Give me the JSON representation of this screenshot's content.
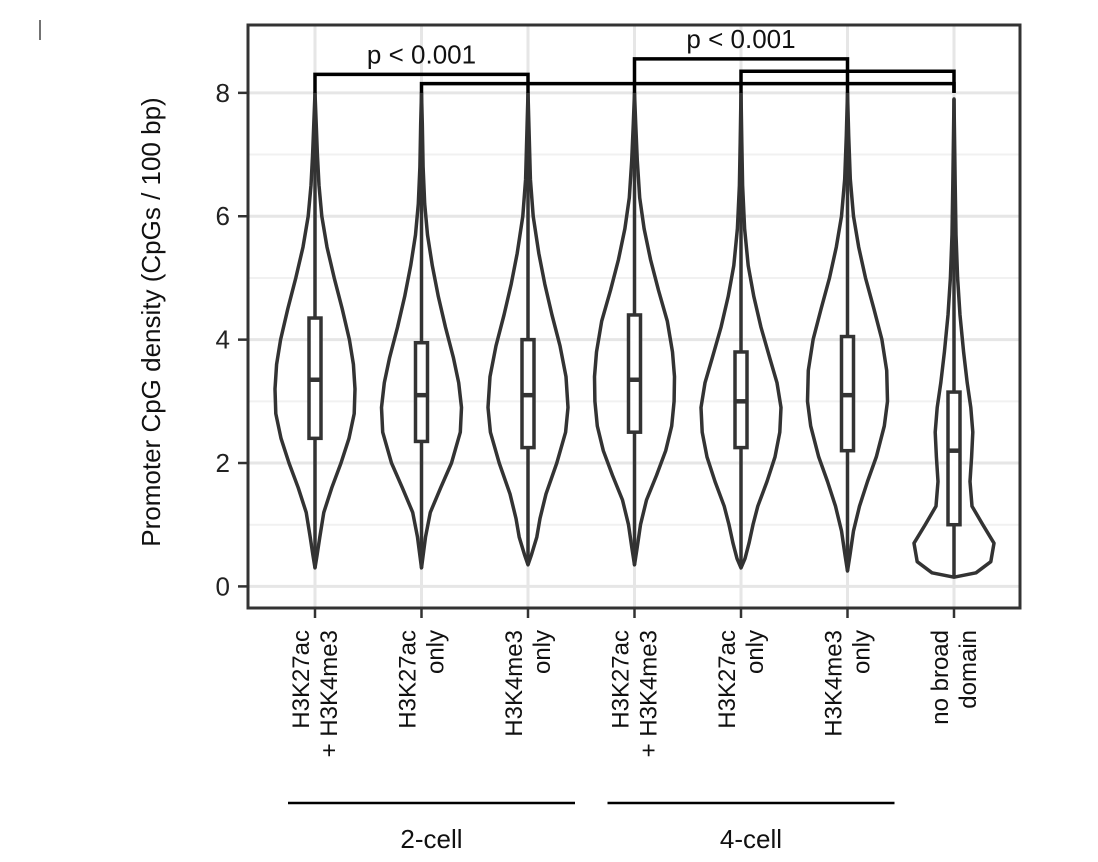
{
  "chart_data": {
    "type": "violin",
    "ylabel": "Promoter CpG density (CpGs / 100 bp)",
    "ylim": [
      -0.35,
      9.1
    ],
    "yticks": [
      "0",
      "2",
      "4",
      "6",
      "8"
    ],
    "grid": true,
    "categories": [
      {
        "lines": [
          "H3K27ac",
          "+ H3K4me3"
        ],
        "group": "2-cell"
      },
      {
        "lines": [
          "H3K27ac",
          "only"
        ],
        "group": "2-cell"
      },
      {
        "lines": [
          "H3K4me3",
          "only"
        ],
        "group": "2-cell"
      },
      {
        "lines": [
          "H3K27ac",
          "+ H3K4me3"
        ],
        "group": "4-cell"
      },
      {
        "lines": [
          "H3K27ac",
          "only"
        ],
        "group": "4-cell"
      },
      {
        "lines": [
          "H3K4me3",
          "only"
        ],
        "group": "4-cell"
      },
      {
        "lines": [
          "no broad",
          "domain"
        ],
        "group": ""
      }
    ],
    "groups": [
      "2-cell",
      "4-cell"
    ],
    "series": [
      {
        "median": 3.35,
        "q1": 2.4,
        "q3": 4.35,
        "min": 0.3,
        "max": 8.0,
        "density": [
          [
            0.3,
            0.0
          ],
          [
            0.5,
            0.05
          ],
          [
            0.8,
            0.12
          ],
          [
            1.2,
            0.22
          ],
          [
            1.6,
            0.42
          ],
          [
            2.0,
            0.65
          ],
          [
            2.4,
            0.85
          ],
          [
            2.8,
            0.98
          ],
          [
            3.2,
            1.0
          ],
          [
            3.6,
            0.96
          ],
          [
            4.0,
            0.86
          ],
          [
            4.5,
            0.68
          ],
          [
            5.0,
            0.48
          ],
          [
            5.5,
            0.3
          ],
          [
            6.0,
            0.17
          ],
          [
            6.5,
            0.1
          ],
          [
            7.0,
            0.06
          ],
          [
            7.5,
            0.03
          ],
          [
            8.0,
            0.0
          ]
        ]
      },
      {
        "median": 3.1,
        "q1": 2.35,
        "q3": 3.95,
        "min": 0.3,
        "max": 8.0,
        "density": [
          [
            0.3,
            0.0
          ],
          [
            0.5,
            0.04
          ],
          [
            0.8,
            0.1
          ],
          [
            1.2,
            0.22
          ],
          [
            1.6,
            0.48
          ],
          [
            2.0,
            0.75
          ],
          [
            2.5,
            0.97
          ],
          [
            2.9,
            1.0
          ],
          [
            3.3,
            0.93
          ],
          [
            3.7,
            0.8
          ],
          [
            4.2,
            0.6
          ],
          [
            4.7,
            0.42
          ],
          [
            5.2,
            0.27
          ],
          [
            5.7,
            0.15
          ],
          [
            6.2,
            0.08
          ],
          [
            6.8,
            0.04
          ],
          [
            7.5,
            0.02
          ],
          [
            8.0,
            0.0
          ]
        ]
      },
      {
        "median": 3.1,
        "q1": 2.25,
        "q3": 4.0,
        "min": 0.35,
        "max": 8.0,
        "density": [
          [
            0.35,
            0.0
          ],
          [
            0.5,
            0.08
          ],
          [
            0.8,
            0.22
          ],
          [
            1.1,
            0.3
          ],
          [
            1.5,
            0.45
          ],
          [
            2.0,
            0.72
          ],
          [
            2.5,
            0.94
          ],
          [
            2.9,
            1.0
          ],
          [
            3.4,
            0.95
          ],
          [
            3.9,
            0.8
          ],
          [
            4.4,
            0.6
          ],
          [
            4.9,
            0.42
          ],
          [
            5.4,
            0.27
          ],
          [
            6.0,
            0.13
          ],
          [
            6.6,
            0.06
          ],
          [
            7.3,
            0.03
          ],
          [
            8.0,
            0.0
          ]
        ]
      },
      {
        "median": 3.35,
        "q1": 2.5,
        "q3": 4.4,
        "min": 0.35,
        "max": 8.0,
        "density": [
          [
            0.35,
            0.0
          ],
          [
            0.6,
            0.06
          ],
          [
            1.0,
            0.15
          ],
          [
            1.4,
            0.3
          ],
          [
            1.8,
            0.55
          ],
          [
            2.2,
            0.78
          ],
          [
            2.6,
            0.93
          ],
          [
            3.0,
            0.99
          ],
          [
            3.4,
            1.0
          ],
          [
            3.8,
            0.95
          ],
          [
            4.3,
            0.82
          ],
          [
            4.8,
            0.6
          ],
          [
            5.3,
            0.4
          ],
          [
            5.8,
            0.24
          ],
          [
            6.3,
            0.13
          ],
          [
            6.9,
            0.07
          ],
          [
            7.5,
            0.03
          ],
          [
            8.0,
            0.0
          ]
        ]
      },
      {
        "median": 3.0,
        "q1": 2.25,
        "q3": 3.8,
        "min": 0.3,
        "max": 8.0,
        "density": [
          [
            0.3,
            0.0
          ],
          [
            0.45,
            0.1
          ],
          [
            0.7,
            0.2
          ],
          [
            1.0,
            0.3
          ],
          [
            1.3,
            0.42
          ],
          [
            1.7,
            0.65
          ],
          [
            2.1,
            0.85
          ],
          [
            2.5,
            0.97
          ],
          [
            2.9,
            1.0
          ],
          [
            3.3,
            0.9
          ],
          [
            3.7,
            0.72
          ],
          [
            4.2,
            0.5
          ],
          [
            4.7,
            0.32
          ],
          [
            5.2,
            0.18
          ],
          [
            5.8,
            0.09
          ],
          [
            6.5,
            0.04
          ],
          [
            7.2,
            0.02
          ],
          [
            8.0,
            0.0
          ]
        ]
      },
      {
        "median": 3.1,
        "q1": 2.2,
        "q3": 4.05,
        "min": 0.25,
        "max": 8.0,
        "density": [
          [
            0.25,
            0.0
          ],
          [
            0.5,
            0.06
          ],
          [
            0.9,
            0.15
          ],
          [
            1.3,
            0.3
          ],
          [
            1.7,
            0.5
          ],
          [
            2.1,
            0.72
          ],
          [
            2.6,
            0.92
          ],
          [
            3.0,
            1.0
          ],
          [
            3.5,
            0.98
          ],
          [
            4.0,
            0.86
          ],
          [
            4.5,
            0.66
          ],
          [
            5.0,
            0.45
          ],
          [
            5.5,
            0.28
          ],
          [
            6.0,
            0.15
          ],
          [
            6.6,
            0.07
          ],
          [
            7.3,
            0.03
          ],
          [
            8.0,
            0.0
          ]
        ]
      },
      {
        "median": 2.2,
        "q1": 1.0,
        "q3": 3.15,
        "min": 0.15,
        "max": 7.9,
        "density": [
          [
            0.15,
            0.0
          ],
          [
            0.22,
            0.55
          ],
          [
            0.4,
            0.92
          ],
          [
            0.7,
            1.0
          ],
          [
            1.0,
            0.72
          ],
          [
            1.3,
            0.45
          ],
          [
            1.7,
            0.4
          ],
          [
            2.1,
            0.44
          ],
          [
            2.5,
            0.47
          ],
          [
            2.9,
            0.42
          ],
          [
            3.3,
            0.33
          ],
          [
            3.8,
            0.24
          ],
          [
            4.4,
            0.15
          ],
          [
            5.0,
            0.09
          ],
          [
            5.7,
            0.05
          ],
          [
            6.5,
            0.03
          ],
          [
            7.2,
            0.015
          ],
          [
            7.9,
            0.0
          ]
        ]
      }
    ],
    "brackets": [
      {
        "from": 0,
        "to": 2,
        "height": 8.3,
        "label": "p < 0.001"
      },
      {
        "from": 1,
        "to": 6,
        "height": 8.15,
        "label": ""
      },
      {
        "from": 3,
        "to": 5,
        "height": 8.55,
        "label": "p < 0.001"
      },
      {
        "from": 4,
        "to": 6,
        "height": 8.35,
        "label": ""
      }
    ]
  }
}
